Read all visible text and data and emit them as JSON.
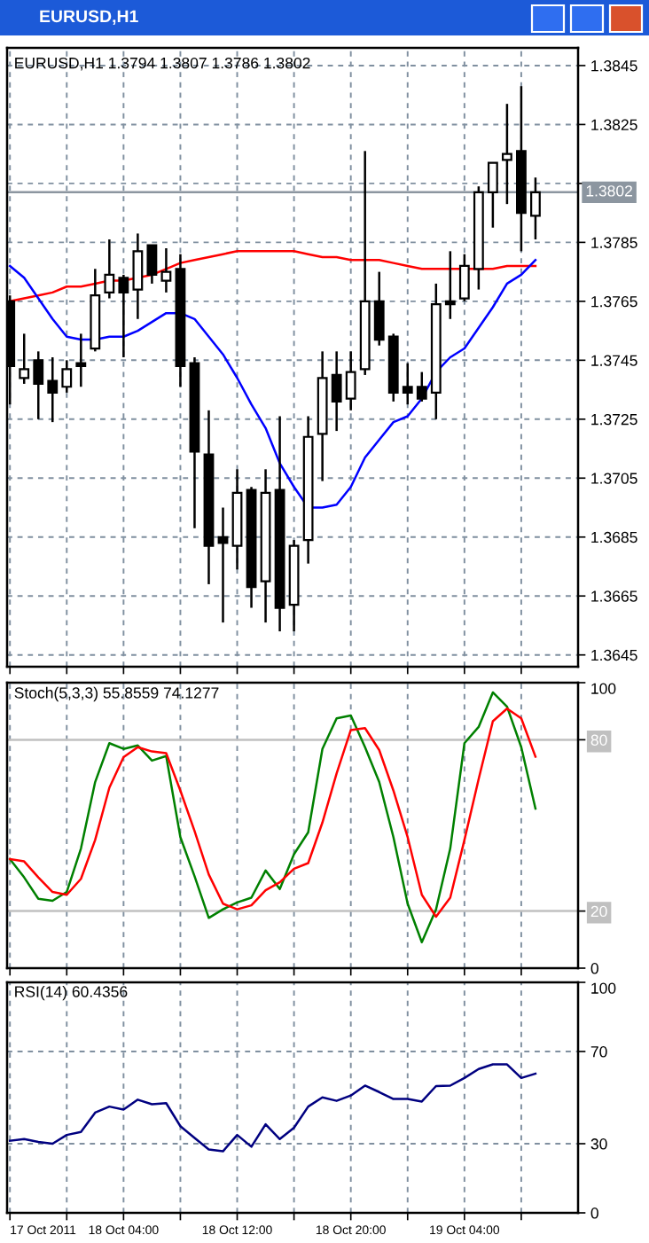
{
  "chart_data": [
    {
      "type": "candlestick",
      "title": "EURUSD,H1 1.3794 1.3807 1.3786 1.3802",
      "subtitle": "EURUSD,H1",
      "x": [
        "2011-10-17T20:00",
        "2011-10-17T21:00",
        "2011-10-17T22:00",
        "2011-10-17T23:00",
        "2011-10-18T00:00",
        "2011-10-18T01:00",
        "2011-10-18T02:00",
        "2011-10-18T03:00",
        "2011-10-18T04:00",
        "2011-10-18T05:00",
        "2011-10-18T06:00",
        "2011-10-18T07:00",
        "2011-10-18T08:00",
        "2011-10-18T09:00",
        "2011-10-18T10:00",
        "2011-10-18T11:00",
        "2011-10-18T12:00",
        "2011-10-18T13:00",
        "2011-10-18T14:00",
        "2011-10-18T15:00",
        "2011-10-18T16:00",
        "2011-10-18T17:00",
        "2011-10-18T18:00",
        "2011-10-18T19:00",
        "2011-10-18T20:00",
        "2011-10-18T21:00",
        "2011-10-18T22:00",
        "2011-10-18T23:00",
        "2011-10-19T00:00",
        "2011-10-19T01:00",
        "2011-10-19T02:00",
        "2011-10-19T03:00",
        "2011-10-19T04:00",
        "2011-10-19T05:00",
        "2011-10-19T06:00",
        "2011-10-19T07:00",
        "2011-10-19T08:00",
        "2011-10-19T09:00"
      ],
      "ohlc": [
        [
          1.3765,
          1.3767,
          1.373,
          1.3743
        ],
        [
          1.3739,
          1.3754,
          1.3737,
          1.3742
        ],
        [
          1.3745,
          1.3748,
          1.3725,
          1.3737
        ],
        [
          1.3738,
          1.3746,
          1.3724,
          1.3734
        ],
        [
          1.3736,
          1.3745,
          1.3734,
          1.3742
        ],
        [
          1.3744,
          1.3754,
          1.3736,
          1.3743
        ],
        [
          1.3749,
          1.3776,
          1.3748,
          1.3767
        ],
        [
          1.3768,
          1.3786,
          1.3766,
          1.3774
        ],
        [
          1.3773,
          1.3774,
          1.3746,
          1.3768
        ],
        [
          1.3769,
          1.3788,
          1.3759,
          1.3782
        ],
        [
          1.3784,
          1.3784,
          1.3771,
          1.3774
        ],
        [
          1.3772,
          1.3783,
          1.3768,
          1.3775
        ],
        [
          1.3776,
          1.3781,
          1.3736,
          1.3743
        ],
        [
          1.3744,
          1.3746,
          1.3688,
          1.3714
        ],
        [
          1.3713,
          1.3728,
          1.3669,
          1.3682
        ],
        [
          1.3685,
          1.3695,
          1.3656,
          1.3683
        ],
        [
          1.3682,
          1.3708,
          1.3674,
          1.37
        ],
        [
          1.3701,
          1.3702,
          1.3661,
          1.3668
        ],
        [
          1.367,
          1.3708,
          1.3656,
          1.37
        ],
        [
          1.3701,
          1.3726,
          1.3653,
          1.3661
        ],
        [
          1.3662,
          1.3684,
          1.3653,
          1.3682
        ],
        [
          1.3684,
          1.3726,
          1.3676,
          1.3719
        ],
        [
          1.372,
          1.3748,
          1.3704,
          1.3739
        ],
        [
          1.374,
          1.3748,
          1.3721,
          1.3731
        ],
        [
          1.3732,
          1.3748,
          1.3728,
          1.3741
        ],
        [
          1.3742,
          1.3816,
          1.374,
          1.3765
        ],
        [
          1.3765,
          1.3775,
          1.375,
          1.3752
        ],
        [
          1.3753,
          1.3754,
          1.3731,
          1.3734
        ],
        [
          1.3736,
          1.3744,
          1.373,
          1.3734
        ],
        [
          1.3736,
          1.3741,
          1.3731,
          1.3732
        ],
        [
          1.3734,
          1.3771,
          1.3725,
          1.3764
        ],
        [
          1.3765,
          1.3782,
          1.3759,
          1.3764
        ],
        [
          1.3766,
          1.3781,
          1.3765,
          1.3777
        ],
        [
          1.3776,
          1.3804,
          1.3769,
          1.3802
        ],
        [
          1.3802,
          1.3812,
          1.379,
          1.3812
        ],
        [
          1.3813,
          1.3832,
          1.3798,
          1.3815
        ],
        [
          1.3816,
          1.3838,
          1.3782,
          1.3795
        ],
        [
          1.3794,
          1.3807,
          1.3786,
          1.3802
        ]
      ],
      "series": [
        {
          "type": "line",
          "color": "#ff0000",
          "values": [
            1.3765,
            1.3766,
            1.3767,
            1.3768,
            1.377,
            1.377,
            1.3771,
            1.3772,
            1.3772,
            1.3773,
            1.3774,
            1.3776,
            1.3778,
            1.3779,
            1.378,
            1.3781,
            1.3782,
            1.3782,
            1.3782,
            1.3782,
            1.3782,
            1.3781,
            1.378,
            1.378,
            1.3779,
            1.3779,
            1.3779,
            1.3778,
            1.3777,
            1.3776,
            1.3776,
            1.3776,
            1.3776,
            1.3776,
            1.3776,
            1.3777,
            1.3777,
            1.3777
          ]
        },
        {
          "type": "line",
          "color": "#0000ff",
          "values": [
            1.3777,
            1.3773,
            1.3766,
            1.3759,
            1.3753,
            1.3752,
            1.3752,
            1.3753,
            1.3753,
            1.3755,
            1.3758,
            1.3761,
            1.3761,
            1.3759,
            1.3753,
            1.3747,
            1.3739,
            1.373,
            1.3722,
            1.371,
            1.3702,
            1.3695,
            1.3695,
            1.3696,
            1.3702,
            1.3712,
            1.3718,
            1.3724,
            1.3726,
            1.3732,
            1.3741,
            1.3746,
            1.3749,
            1.3756,
            1.3763,
            1.3771,
            1.3774,
            1.3779
          ]
        }
      ],
      "ylim": [
        1.3641,
        1.3851
      ],
      "yticks": [
        1.3645,
        1.3665,
        1.3685,
        1.3705,
        1.3725,
        1.3745,
        1.3765,
        1.3785,
        {
          "value": 1.3805,
          "label": null
        },
        1.3825,
        1.3845
      ],
      "xlim": [
        "2011-10-17T19:48",
        "2011-10-19T12:00"
      ],
      "xticks": [
        {
          "value": "2011-10-17T20:00",
          "label": null
        },
        {
          "value": "2011-10-18T00:00",
          "label": null
        },
        {
          "value": "2011-10-18T04:00",
          "label": null
        },
        {
          "value": "2011-10-18T08:00",
          "label": null
        },
        {
          "value": "2011-10-18T12:00",
          "label": null
        },
        {
          "value": "2011-10-18T16:00",
          "label": null
        },
        {
          "value": "2011-10-18T20:00",
          "label": null
        },
        {
          "value": "2011-10-19T00:00",
          "label": null
        },
        {
          "value": "2011-10-19T04:00",
          "label": null
        },
        {
          "value": "2011-10-19T08:00",
          "label": null
        }
      ],
      "ref_lines": [
        {
          "axis": "y",
          "value": 1.3802,
          "label": "1.3802",
          "color": "#8c96a0"
        }
      ],
      "grid": true,
      "tick_labels": "y"
    },
    {
      "type": "line",
      "title": "Stoch(5,3,3) 55.8559 74.1277",
      "x": [
        "2011-10-17T20:00",
        "2011-10-17T21:00",
        "2011-10-17T22:00",
        "2011-10-17T23:00",
        "2011-10-18T00:00",
        "2011-10-18T01:00",
        "2011-10-18T02:00",
        "2011-10-18T03:00",
        "2011-10-18T04:00",
        "2011-10-18T05:00",
        "2011-10-18T06:00",
        "2011-10-18T07:00",
        "2011-10-18T08:00",
        "2011-10-18T09:00",
        "2011-10-18T10:00",
        "2011-10-18T11:00",
        "2011-10-18T12:00",
        "2011-10-18T13:00",
        "2011-10-18T14:00",
        "2011-10-18T15:00",
        "2011-10-18T16:00",
        "2011-10-18T17:00",
        "2011-10-18T18:00",
        "2011-10-18T19:00",
        "2011-10-18T20:00",
        "2011-10-18T21:00",
        "2011-10-18T22:00",
        "2011-10-18T23:00",
        "2011-10-19T00:00",
        "2011-10-19T01:00",
        "2011-10-19T02:00",
        "2011-10-19T03:00",
        "2011-10-19T04:00",
        "2011-10-19T05:00",
        "2011-10-19T06:00",
        "2011-10-19T07:00",
        "2011-10-19T08:00",
        "2011-10-19T09:00"
      ],
      "series": [
        {
          "color": "#008000",
          "values": [
            38.2,
            31.8,
            24.3,
            23.6,
            26.7,
            41.9,
            65.2,
            78.8,
            76.8,
            78.0,
            72.7,
            74.3,
            45.9,
            32.2,
            17.6,
            20.6,
            23.0,
            24.7,
            34.2,
            27.7,
            39.9,
            47.6,
            76.8,
            87.5,
            88.5,
            77.4,
            65.2,
            45.9,
            22.6,
            9.1,
            20.6,
            41.9,
            78.8,
            84.5,
            96.6,
            91.6,
            77.4,
            55.9
          ]
        },
        {
          "color": "#ff0000",
          "values": [
            38.2,
            37.4,
            31.8,
            26.7,
            25.7,
            31.3,
            44.9,
            63.2,
            73.9,
            77.4,
            75.9,
            75.3,
            62.2,
            48.0,
            32.8,
            22.6,
            20.6,
            22.0,
            27.3,
            30.1,
            34.8,
            36.8,
            51.0,
            68.2,
            83.4,
            84.1,
            76.4,
            62.2,
            45.9,
            25.7,
            18.0,
            24.7,
            44.9,
            66.2,
            86.5,
            90.9,
            87.5,
            74.1
          ]
        }
      ],
      "ylim": [
        0,
        100
      ],
      "yticks": [
        0,
        20,
        80,
        100
      ],
      "xlim": [
        "2011-10-17T19:48",
        "2011-10-19T12:00"
      ],
      "xticks": [
        {
          "value": "2011-10-17T20:00",
          "label": null
        },
        {
          "value": "2011-10-18T00:00",
          "label": null
        },
        {
          "value": "2011-10-18T04:00",
          "label": null
        },
        {
          "value": "2011-10-18T08:00",
          "label": null
        },
        {
          "value": "2011-10-18T12:00",
          "label": null
        },
        {
          "value": "2011-10-18T16:00",
          "label": null
        },
        {
          "value": "2011-10-18T20:00",
          "label": null
        },
        {
          "value": "2011-10-19T00:00",
          "label": null
        },
        {
          "value": "2011-10-19T04:00",
          "label": null
        },
        {
          "value": "2011-10-19T08:00",
          "label": null
        }
      ],
      "ref_lines": [
        {
          "axis": "y",
          "value": 80,
          "color": "#c0c0c0"
        },
        {
          "axis": "y",
          "value": 20,
          "color": "#c0c0c0"
        }
      ],
      "grid": true,
      "tick_labels": "y"
    },
    {
      "type": "line",
      "title": "RSI(14) 60.4356",
      "x": [
        "2011-10-17T20:00",
        "2011-10-17T21:00",
        "2011-10-17T22:00",
        "2011-10-17T23:00",
        "2011-10-18T00:00",
        "2011-10-18T01:00",
        "2011-10-18T02:00",
        "2011-10-18T03:00",
        "2011-10-18T04:00",
        "2011-10-18T05:00",
        "2011-10-18T06:00",
        "2011-10-18T07:00",
        "2011-10-18T08:00",
        "2011-10-18T09:00",
        "2011-10-18T10:00",
        "2011-10-18T11:00",
        "2011-10-18T12:00",
        "2011-10-18T13:00",
        "2011-10-18T14:00",
        "2011-10-18T15:00",
        "2011-10-18T16:00",
        "2011-10-18T17:00",
        "2011-10-18T18:00",
        "2011-10-18T19:00",
        "2011-10-18T20:00",
        "2011-10-18T21:00",
        "2011-10-18T22:00",
        "2011-10-18T23:00",
        "2011-10-19T00:00",
        "2011-10-19T01:00",
        "2011-10-19T02:00",
        "2011-10-19T03:00",
        "2011-10-19T04:00",
        "2011-10-19T05:00",
        "2011-10-19T06:00",
        "2011-10-19T07:00",
        "2011-10-19T08:00",
        "2011-10-19T09:00"
      ],
      "series": [
        {
          "color": "#000080",
          "values": [
            31.3,
            32.0,
            30.8,
            30.0,
            33.8,
            35.1,
            43.5,
            46.1,
            44.8,
            49.1,
            47.1,
            47.6,
            37.6,
            32.5,
            27.5,
            26.7,
            33.8,
            28.7,
            38.4,
            32.0,
            36.9,
            46.1,
            50.1,
            48.6,
            50.9,
            55.2,
            52.4,
            49.4,
            49.4,
            48.3,
            55.0,
            55.2,
            58.5,
            62.4,
            64.4,
            64.4,
            58.5,
            60.4
          ]
        }
      ],
      "ylim": [
        0,
        100
      ],
      "yticks": [
        0,
        30,
        70,
        100
      ],
      "xlim": [
        "2011-10-17T19:48",
        "2011-10-19T12:00"
      ],
      "xticks": [
        {
          "value": "2011-10-17T20:00",
          "label": "17 Oct 2011"
        },
        {
          "value": "2011-10-18T00:00",
          "label": null
        },
        {
          "value": "2011-10-18T04:00",
          "label": "18 Oct 04:00"
        },
        {
          "value": "2011-10-18T08:00",
          "label": null
        },
        {
          "value": "2011-10-18T12:00",
          "label": "18 Oct 12:00"
        },
        {
          "value": "2011-10-18T16:00",
          "label": null
        },
        {
          "value": "2011-10-18T20:00",
          "label": "18 Oct 20:00"
        },
        {
          "value": "2011-10-19T00:00",
          "label": null
        },
        {
          "value": "2011-10-19T04:00",
          "label": "19 Oct 04:00"
        },
        {
          "value": "2011-10-19T08:00",
          "label": null
        }
      ],
      "grid": true
    }
  ]
}
